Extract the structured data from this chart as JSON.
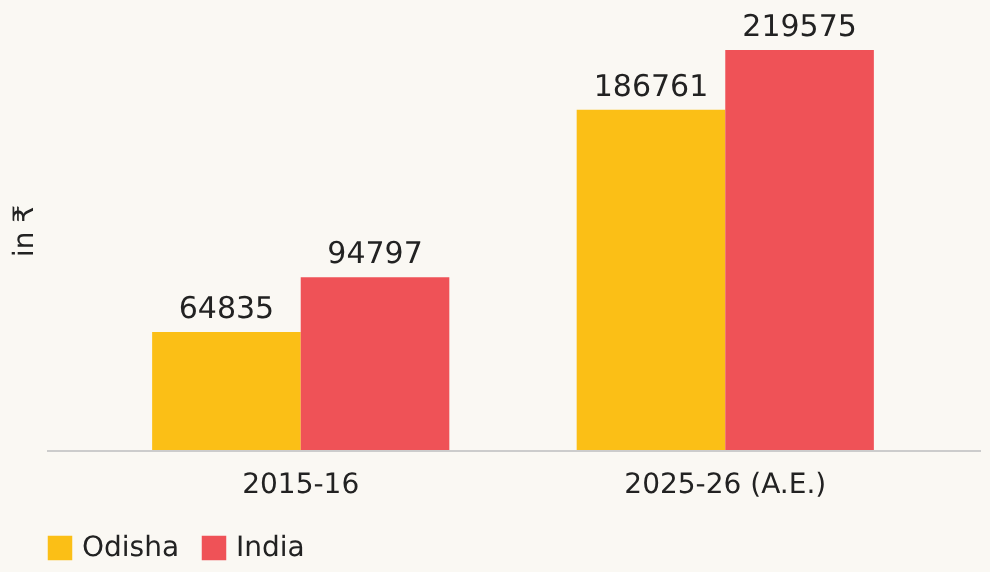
{
  "chart_data": {
    "type": "bar",
    "ylabel": "in ₹",
    "categories": [
      "2015-16",
      "2025-26 (A.E.)"
    ],
    "series": [
      {
        "name": "Odisha",
        "color": "#fbbf16",
        "values": [
          64835,
          186761
        ]
      },
      {
        "name": "India",
        "color": "#ef5257",
        "values": [
          94797,
          219575
        ]
      }
    ],
    "data_labels": true,
    "legend": "bottom",
    "grid": false
  }
}
